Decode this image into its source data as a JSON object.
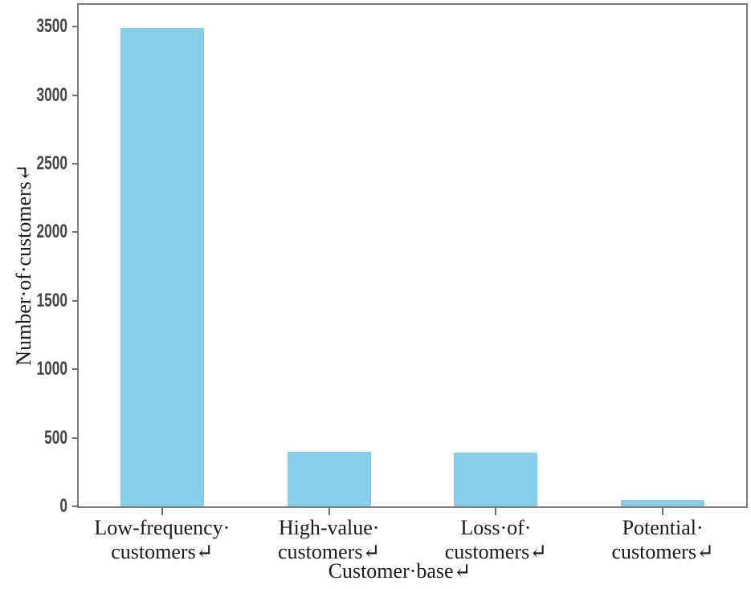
{
  "chart_data": {
    "type": "bar",
    "title": "",
    "xlabel": "Customer·base↵",
    "ylabel": "Number·of·customers↵",
    "categories": [
      {
        "name": "low-frequency-customers",
        "lines": [
          "Low-frequency·",
          "customers↵"
        ]
      },
      {
        "name": "high-value-customers",
        "lines": [
          "High-value·",
          "customers↵"
        ]
      },
      {
        "name": "loss-of-customers",
        "lines": [
          "Loss·of·",
          "customers↵"
        ]
      },
      {
        "name": "potential-customers",
        "lines": [
          "Potential·",
          "customers↵"
        ]
      }
    ],
    "values": [
      3490,
      400,
      390,
      45
    ],
    "yticks": [
      0,
      500,
      1000,
      1500,
      2000,
      2500,
      3000,
      3500
    ],
    "ylim": [
      0,
      3660
    ],
    "grid": false,
    "legend_position": "none",
    "bar_color": "#87CEEB"
  },
  "colors": {
    "bar": "#87CEEB",
    "spine": "#7b7b7b",
    "tick": "#6e6e6e",
    "tick_label": "#454545",
    "text": "#1a1a1a"
  }
}
